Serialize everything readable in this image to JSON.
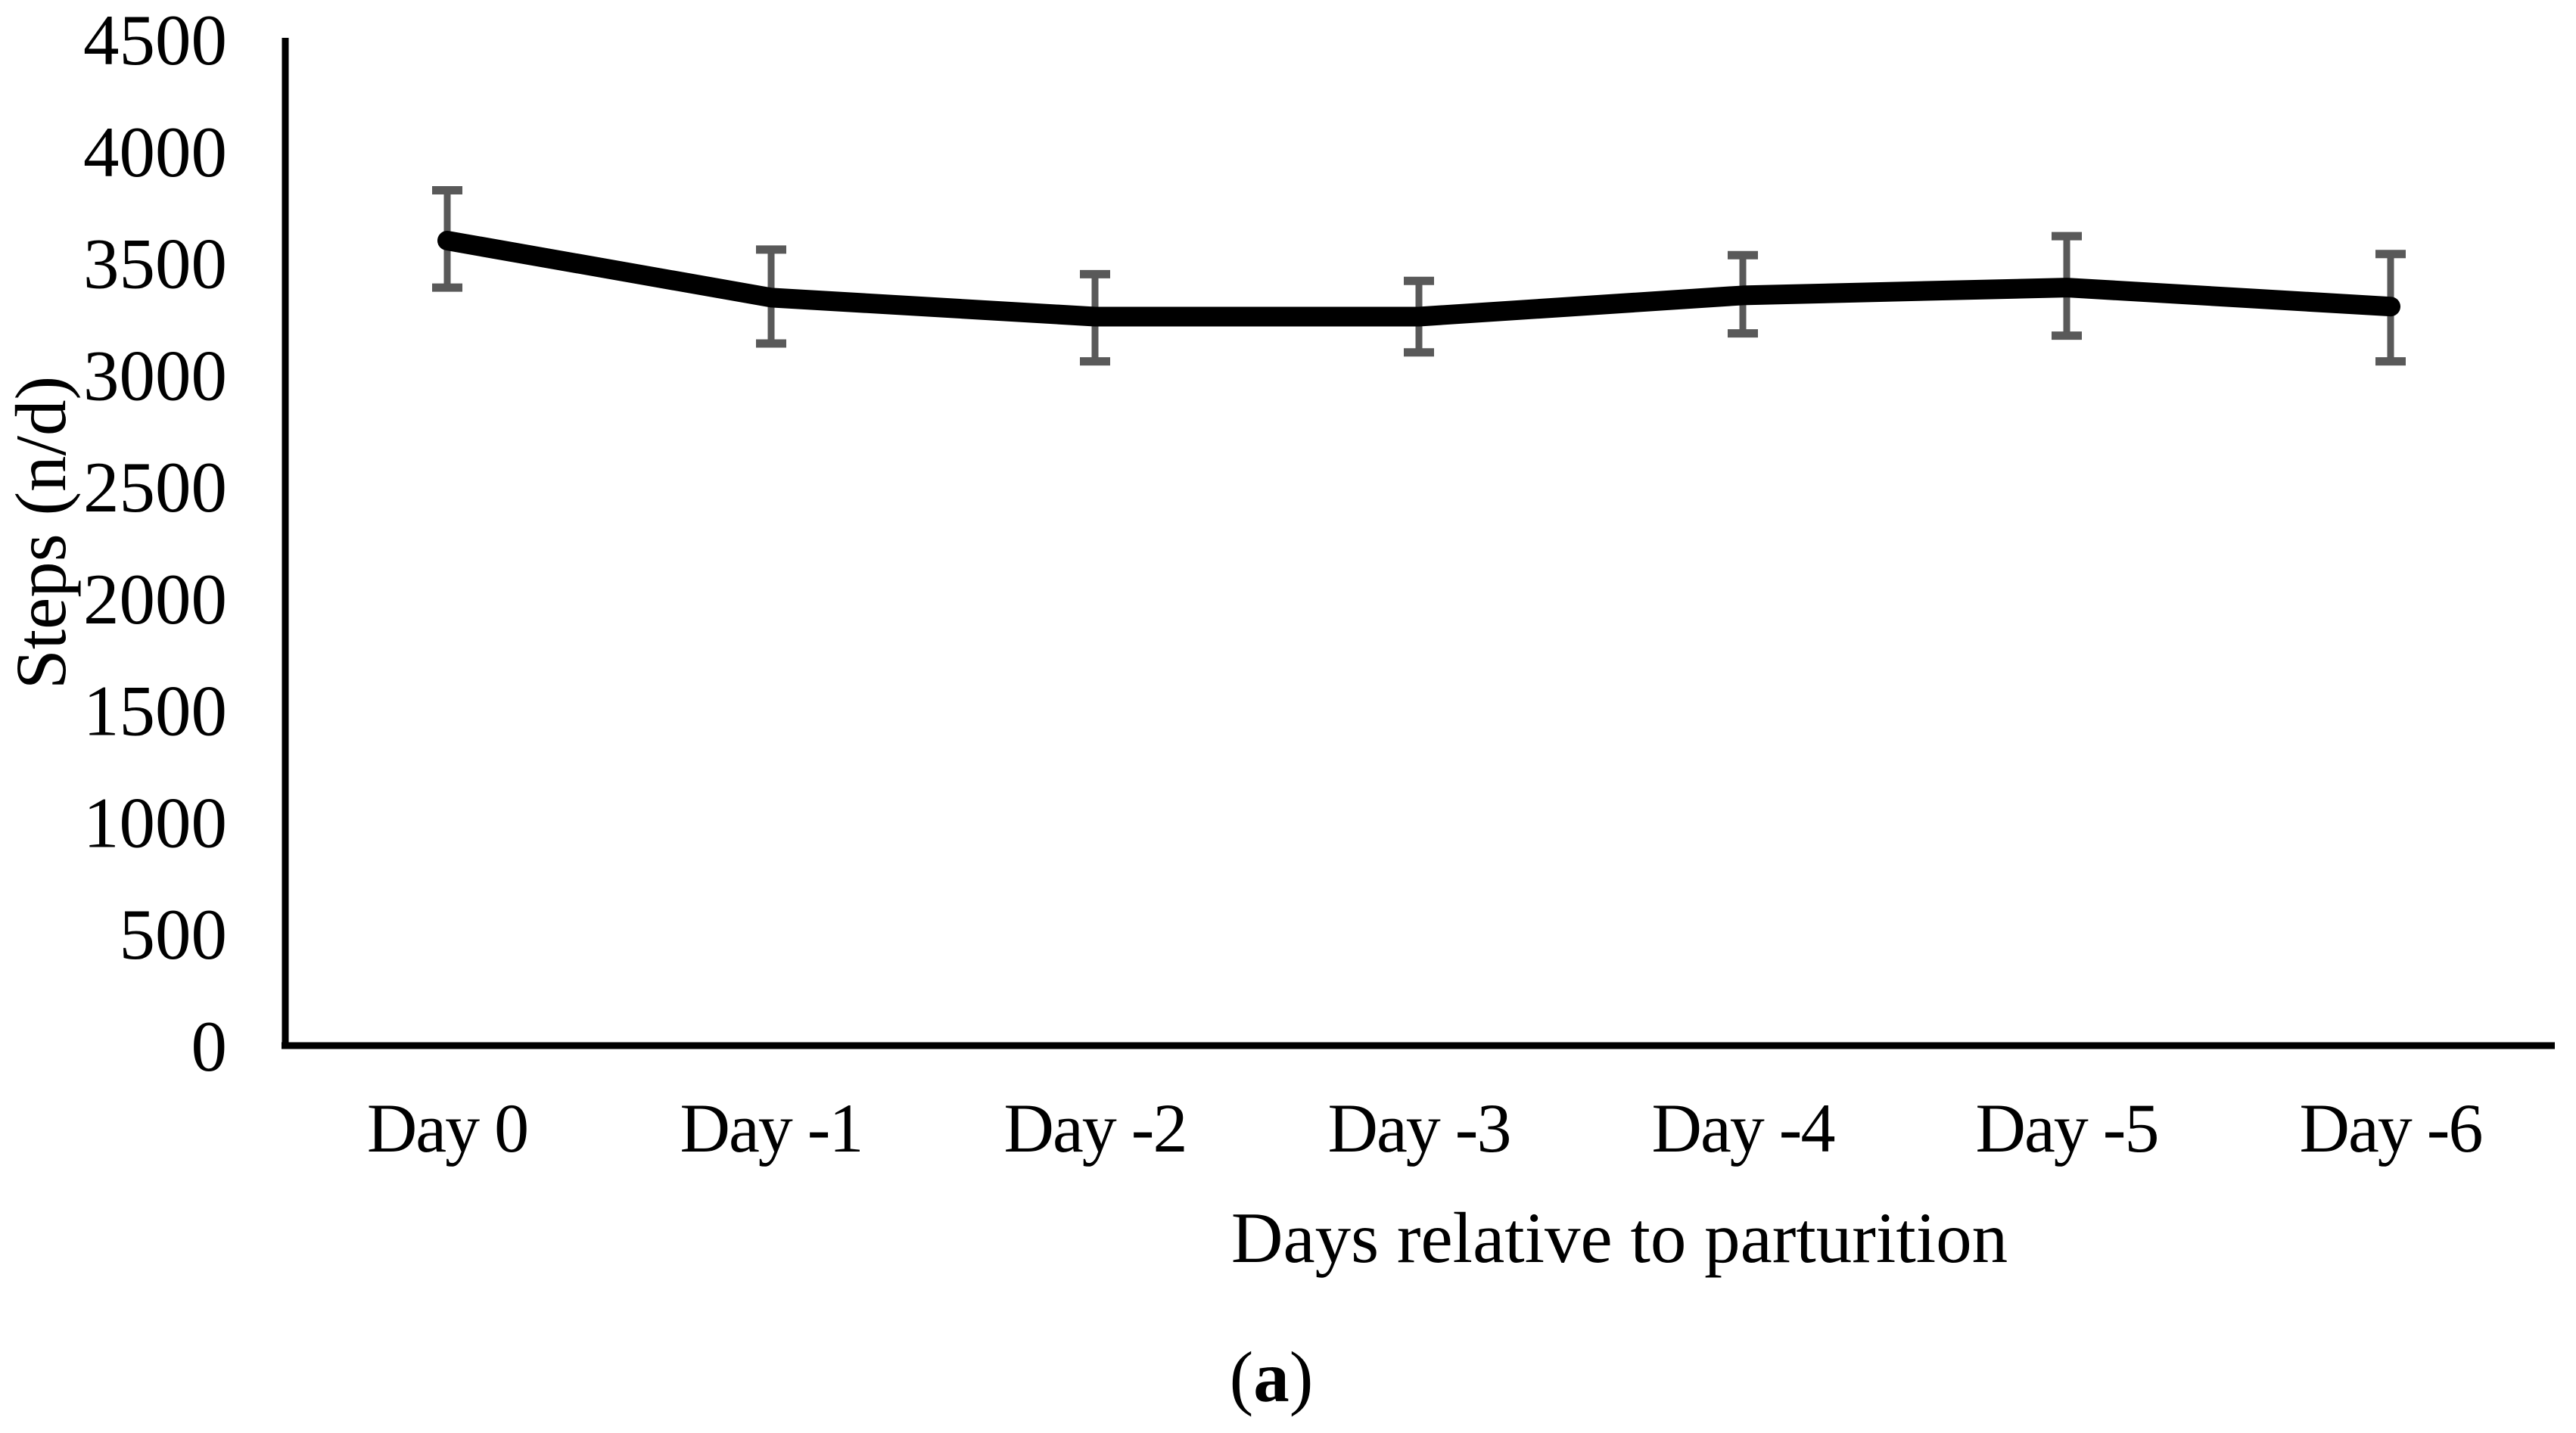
{
  "figure": {
    "caption": {
      "open": "(",
      "letter": "a",
      "close": ")"
    }
  },
  "chart_data": {
    "type": "line",
    "title": "",
    "xlabel": "Days relative to parturition",
    "ylabel": "Steps (n/d)",
    "categories": [
      "Day 0",
      "Day -1",
      "Day -2",
      "Day -3",
      "Day -4",
      "Day -5",
      "Day -6"
    ],
    "series": [
      {
        "name": "Steps",
        "values": [
          3600,
          3345,
          3260,
          3260,
          3355,
          3390,
          3305
        ],
        "error_low": [
          3390,
          3140,
          3060,
          3100,
          3185,
          3175,
          3060
        ],
        "error_high": [
          3825,
          3560,
          3450,
          3420,
          3535,
          3620,
          3540
        ]
      }
    ],
    "ylim": [
      0,
      4500
    ],
    "yticks": [
      0,
      500,
      1000,
      1500,
      2000,
      2500,
      3000,
      3500,
      4000,
      4500
    ],
    "grid": false,
    "legend": false,
    "colors": {
      "line": "#000000",
      "error_bar": "#595959",
      "axis": "#000000",
      "background": "#ffffff"
    }
  }
}
